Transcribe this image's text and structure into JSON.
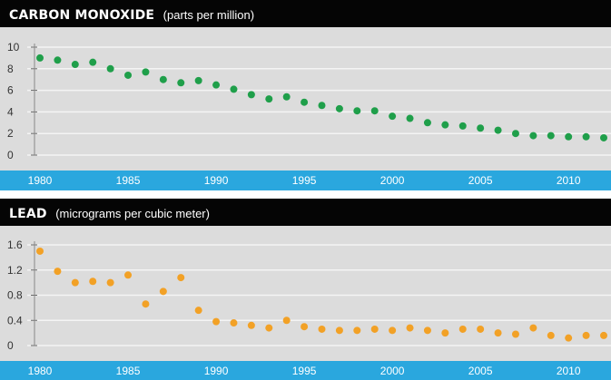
{
  "colors": {
    "header_bg": "#050505",
    "plot_bg": "#dcdcdc",
    "axis_band": "#2aa7de",
    "grid": "#f4f4f4",
    "co_dots": "#1f9f4a",
    "lead_dots": "#f2a126"
  },
  "chart_data": [
    {
      "type": "scatter",
      "title": "CARBON MONOXIDE",
      "subtitle": "(parts per million)",
      "xlim": [
        1980,
        2012
      ],
      "ylim": [
        0,
        10
      ],
      "yticks": [
        0,
        2,
        4,
        6,
        8,
        10
      ],
      "ytick_labels": [
        "0",
        "2",
        "4",
        "6",
        "8",
        "10"
      ],
      "xticks": [
        1980,
        1985,
        1990,
        1995,
        2000,
        2005,
        2010
      ],
      "xtick_labels": [
        "1980",
        "1985",
        "1990",
        "1995",
        "2000",
        "2005",
        "2010"
      ],
      "grid": true,
      "x": [
        1980,
        1981,
        1982,
        1983,
        1984,
        1985,
        1986,
        1987,
        1988,
        1989,
        1990,
        1991,
        1992,
        1993,
        1994,
        1995,
        1996,
        1997,
        1998,
        1999,
        2000,
        2001,
        2002,
        2003,
        2004,
        2005,
        2006,
        2007,
        2008,
        2009,
        2010,
        2011,
        2012
      ],
      "y": [
        9.0,
        8.8,
        8.4,
        8.6,
        8.0,
        7.4,
        7.7,
        7.0,
        6.7,
        6.9,
        6.5,
        6.1,
        5.6,
        5.2,
        5.4,
        4.9,
        4.6,
        4.3,
        4.1,
        4.1,
        3.6,
        3.4,
        3.0,
        2.8,
        2.7,
        2.5,
        2.3,
        2.0,
        1.8,
        1.8,
        1.7,
        1.7,
        1.6
      ]
    },
    {
      "type": "scatter",
      "title": "LEAD",
      "subtitle": "(micrograms per cubic meter)",
      "xlim": [
        1980,
        2012
      ],
      "ylim": [
        0,
        1.6
      ],
      "yticks": [
        0,
        0.4,
        0.8,
        1.2,
        1.6
      ],
      "ytick_labels": [
        "0",
        "0.4",
        "0.8",
        "1.2",
        "1.6"
      ],
      "xticks": [
        1980,
        1985,
        1990,
        1995,
        2000,
        2005,
        2010
      ],
      "xtick_labels": [
        "1980",
        "1985",
        "1990",
        "1995",
        "2000",
        "2005",
        "2010"
      ],
      "grid": true,
      "x": [
        1980,
        1981,
        1982,
        1983,
        1984,
        1985,
        1986,
        1987,
        1988,
        1989,
        1990,
        1991,
        1992,
        1993,
        1994,
        1995,
        1996,
        1997,
        1998,
        1999,
        2000,
        2001,
        2002,
        2003,
        2004,
        2005,
        2006,
        2007,
        2008,
        2009,
        2010,
        2011,
        2012
      ],
      "y": [
        1.5,
        1.18,
        1.0,
        1.02,
        1.0,
        1.12,
        0.66,
        0.86,
        1.08,
        0.56,
        0.38,
        0.36,
        0.32,
        0.28,
        0.4,
        0.3,
        0.26,
        0.24,
        0.24,
        0.26,
        0.24,
        0.28,
        0.24,
        0.2,
        0.26,
        0.26,
        0.2,
        0.18,
        0.28,
        0.16,
        0.12,
        0.16,
        0.16
      ]
    }
  ]
}
